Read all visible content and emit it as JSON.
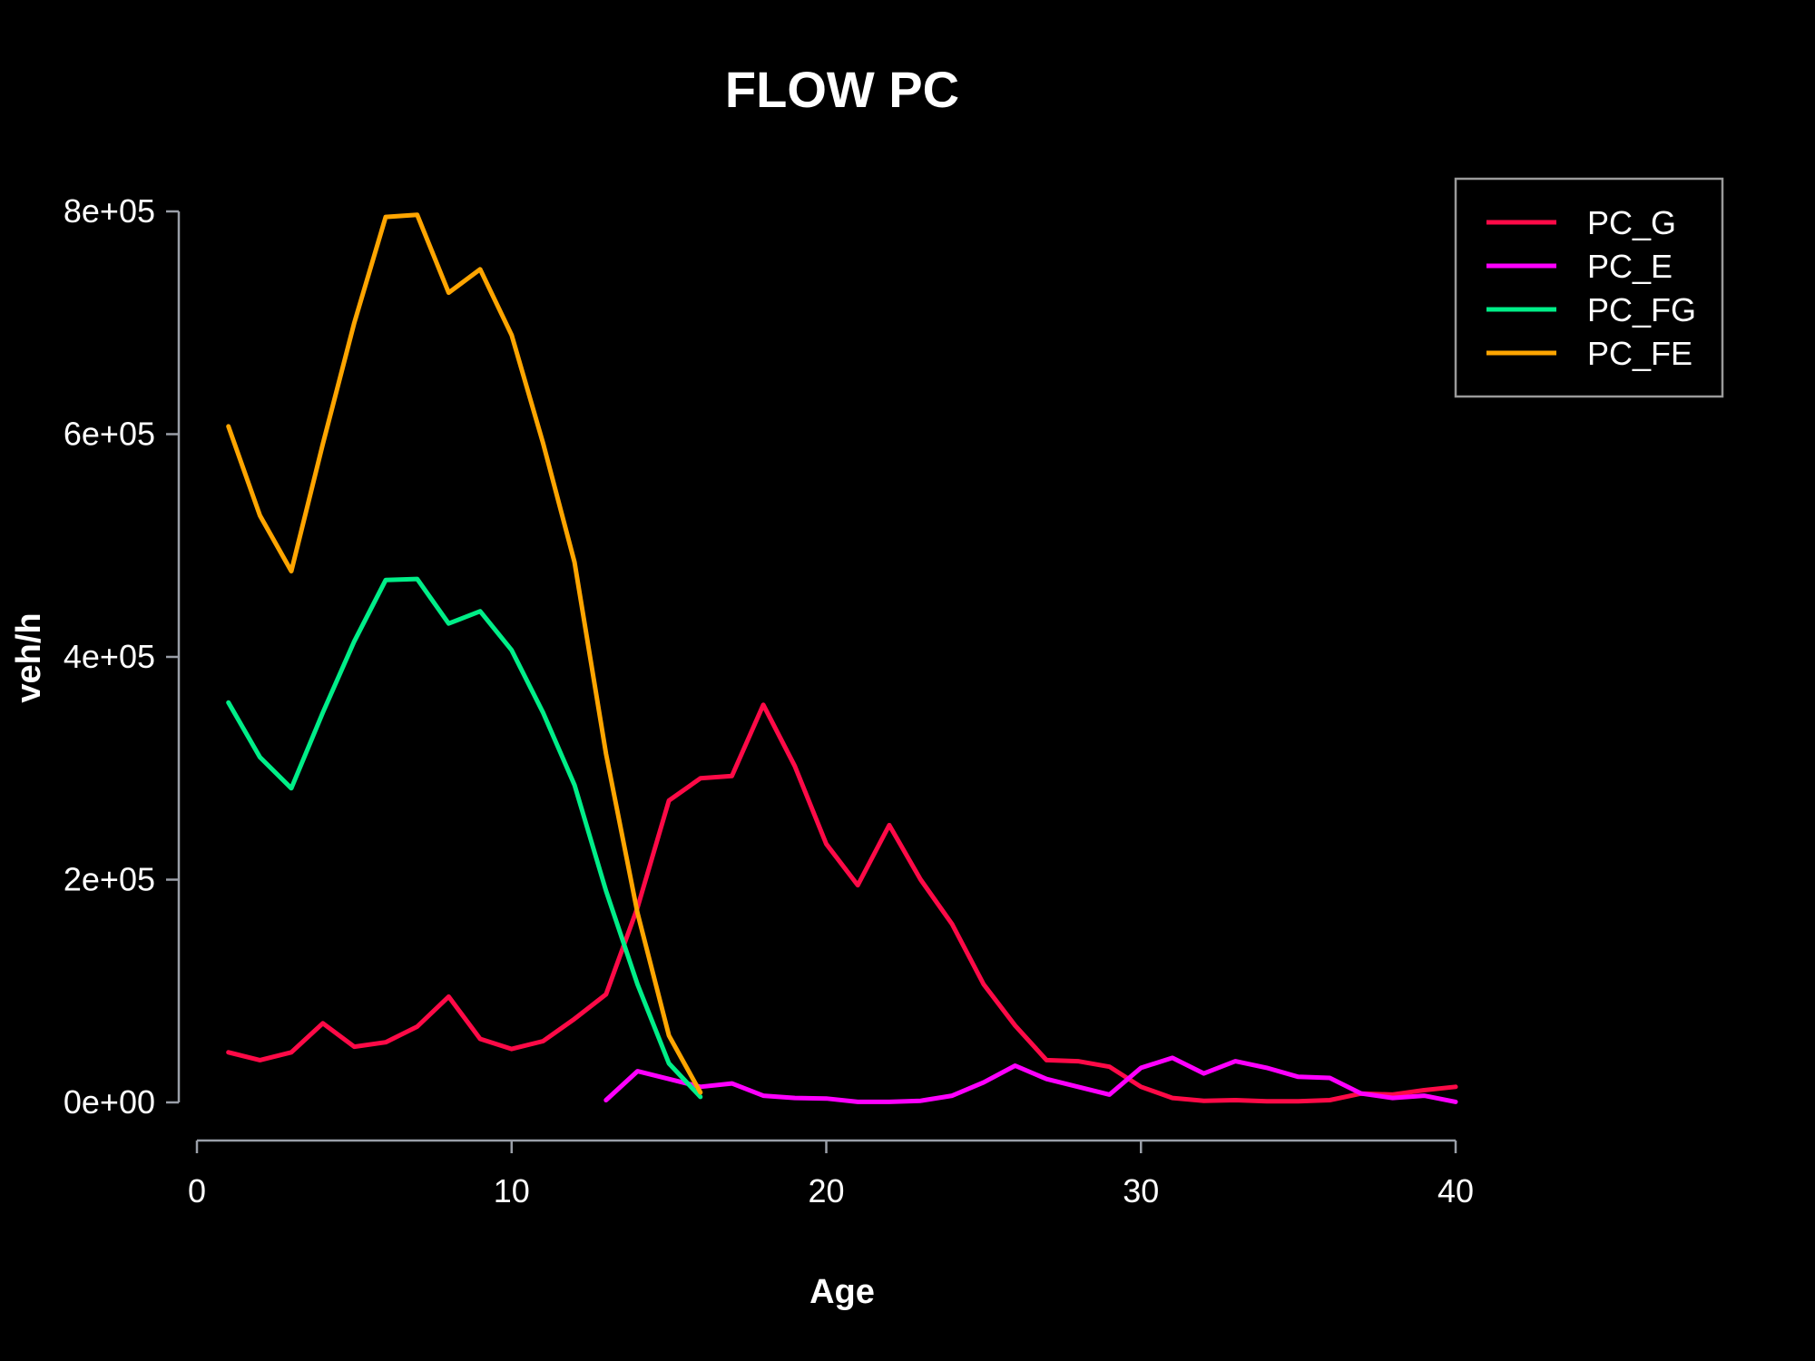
{
  "chart_data": {
    "type": "line",
    "title": "FLOW PC",
    "xlabel": "Age",
    "ylabel": "veh/h",
    "xlim": [
      0,
      40
    ],
    "ylim": [
      0,
      800000
    ],
    "x_ticks": [
      0,
      10,
      20,
      30,
      40
    ],
    "x_tick_labels": [
      "0",
      "10",
      "20",
      "30",
      "40"
    ],
    "y_ticks": [
      0,
      200000,
      400000,
      600000,
      800000
    ],
    "y_tick_labels": [
      "0e+00",
      "2e+05",
      "4e+05",
      "6e+05",
      "8e+05"
    ],
    "grid": false,
    "legend_position": "top-right",
    "series": [
      {
        "name": "PC_G",
        "color": "#ff0a47",
        "x": [
          1,
          2,
          3,
          4,
          5,
          6,
          7,
          8,
          9,
          10,
          11,
          12,
          13,
          14,
          15,
          16,
          17,
          18,
          19,
          20,
          21,
          22,
          23,
          24,
          25,
          26,
          27,
          28,
          29,
          30,
          31,
          32,
          33,
          34,
          35,
          36,
          37,
          38,
          39,
          40
        ],
        "values": [
          45000,
          38000,
          45000,
          71000,
          50000,
          54000,
          68000,
          95000,
          57000,
          48000,
          55000,
          75000,
          97000,
          175000,
          271000,
          291000,
          293000,
          357000,
          302000,
          232000,
          195000,
          249000,
          200000,
          160000,
          106000,
          69000,
          38000,
          37000,
          32000,
          14000,
          4000,
          1500,
          2000,
          1000,
          1000,
          2000,
          8000,
          7000,
          11000,
          14000
        ]
      },
      {
        "name": "PC_E",
        "color": "#ff00ff",
        "x": [
          13,
          14,
          15,
          16,
          17,
          18,
          19,
          20,
          21,
          22,
          23,
          24,
          25,
          26,
          27,
          28,
          29,
          30,
          31,
          32,
          33,
          34,
          35,
          36,
          37,
          38,
          39,
          40
        ],
        "values": [
          2000,
          28000,
          21000,
          14000,
          17000,
          6000,
          4000,
          3500,
          500,
          500,
          1500,
          6000,
          18000,
          33000,
          21000,
          14000,
          7000,
          31000,
          40000,
          26000,
          37000,
          31000,
          23000,
          22000,
          8000,
          4000,
          6000,
          500
        ]
      },
      {
        "name": "PC_FG",
        "color": "#00ee88",
        "x": [
          1,
          2,
          3,
          4,
          5,
          6,
          7,
          8,
          9,
          10,
          11,
          12,
          13,
          14,
          15,
          16
        ],
        "values": [
          359000,
          310000,
          282000,
          350000,
          414000,
          469000,
          470000,
          430000,
          441000,
          406000,
          350000,
          285000,
          190000,
          106000,
          35000,
          5000
        ]
      },
      {
        "name": "PC_FE",
        "color": "#ffa500",
        "x": [
          1,
          2,
          3,
          4,
          5,
          6,
          7,
          8,
          9,
          10,
          11,
          12,
          13,
          14,
          15,
          16
        ],
        "values": [
          607000,
          527000,
          477000,
          591000,
          700000,
          795000,
          797000,
          727000,
          748000,
          689000,
          592000,
          485000,
          313000,
          170000,
          60000,
          9000
        ]
      }
    ]
  }
}
